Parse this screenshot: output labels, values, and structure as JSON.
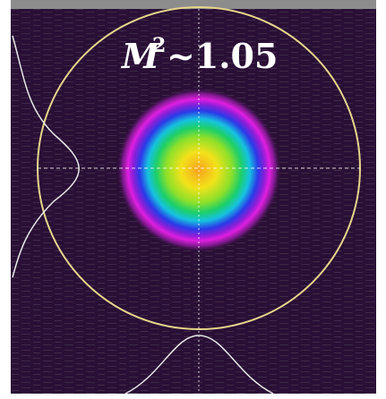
{
  "annotation": {
    "symbol": "M",
    "exponent": "2",
    "value": "~1.05"
  }
}
